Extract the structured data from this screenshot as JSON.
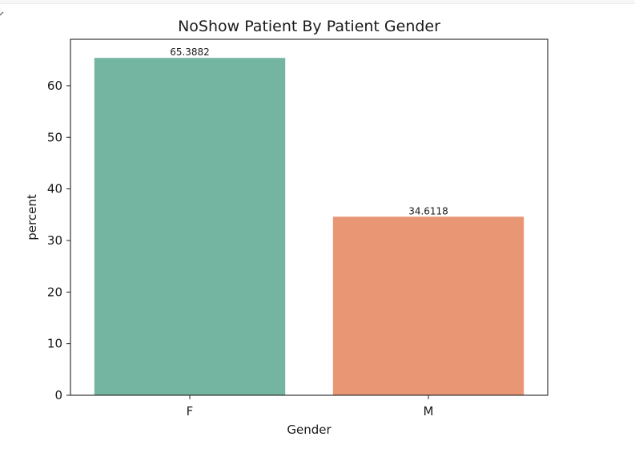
{
  "chart_data": {
    "type": "bar",
    "title": "NoShow Patient By Patient Gender",
    "xlabel": "Gender",
    "ylabel": "percent",
    "categories": [
      "F",
      "M"
    ],
    "values": [
      65.3882,
      34.6118
    ],
    "value_labels": [
      "65.3882",
      "34.6118"
    ],
    "colors": [
      "#73b5a0",
      "#e99674"
    ],
    "ylim": [
      0,
      69
    ],
    "yticks": [
      0,
      10,
      20,
      30,
      40,
      50,
      60
    ],
    "ytick_labels": [
      "0",
      "10",
      "20",
      "30",
      "40",
      "50",
      "60"
    ],
    "grid": false,
    "legend": "none"
  }
}
